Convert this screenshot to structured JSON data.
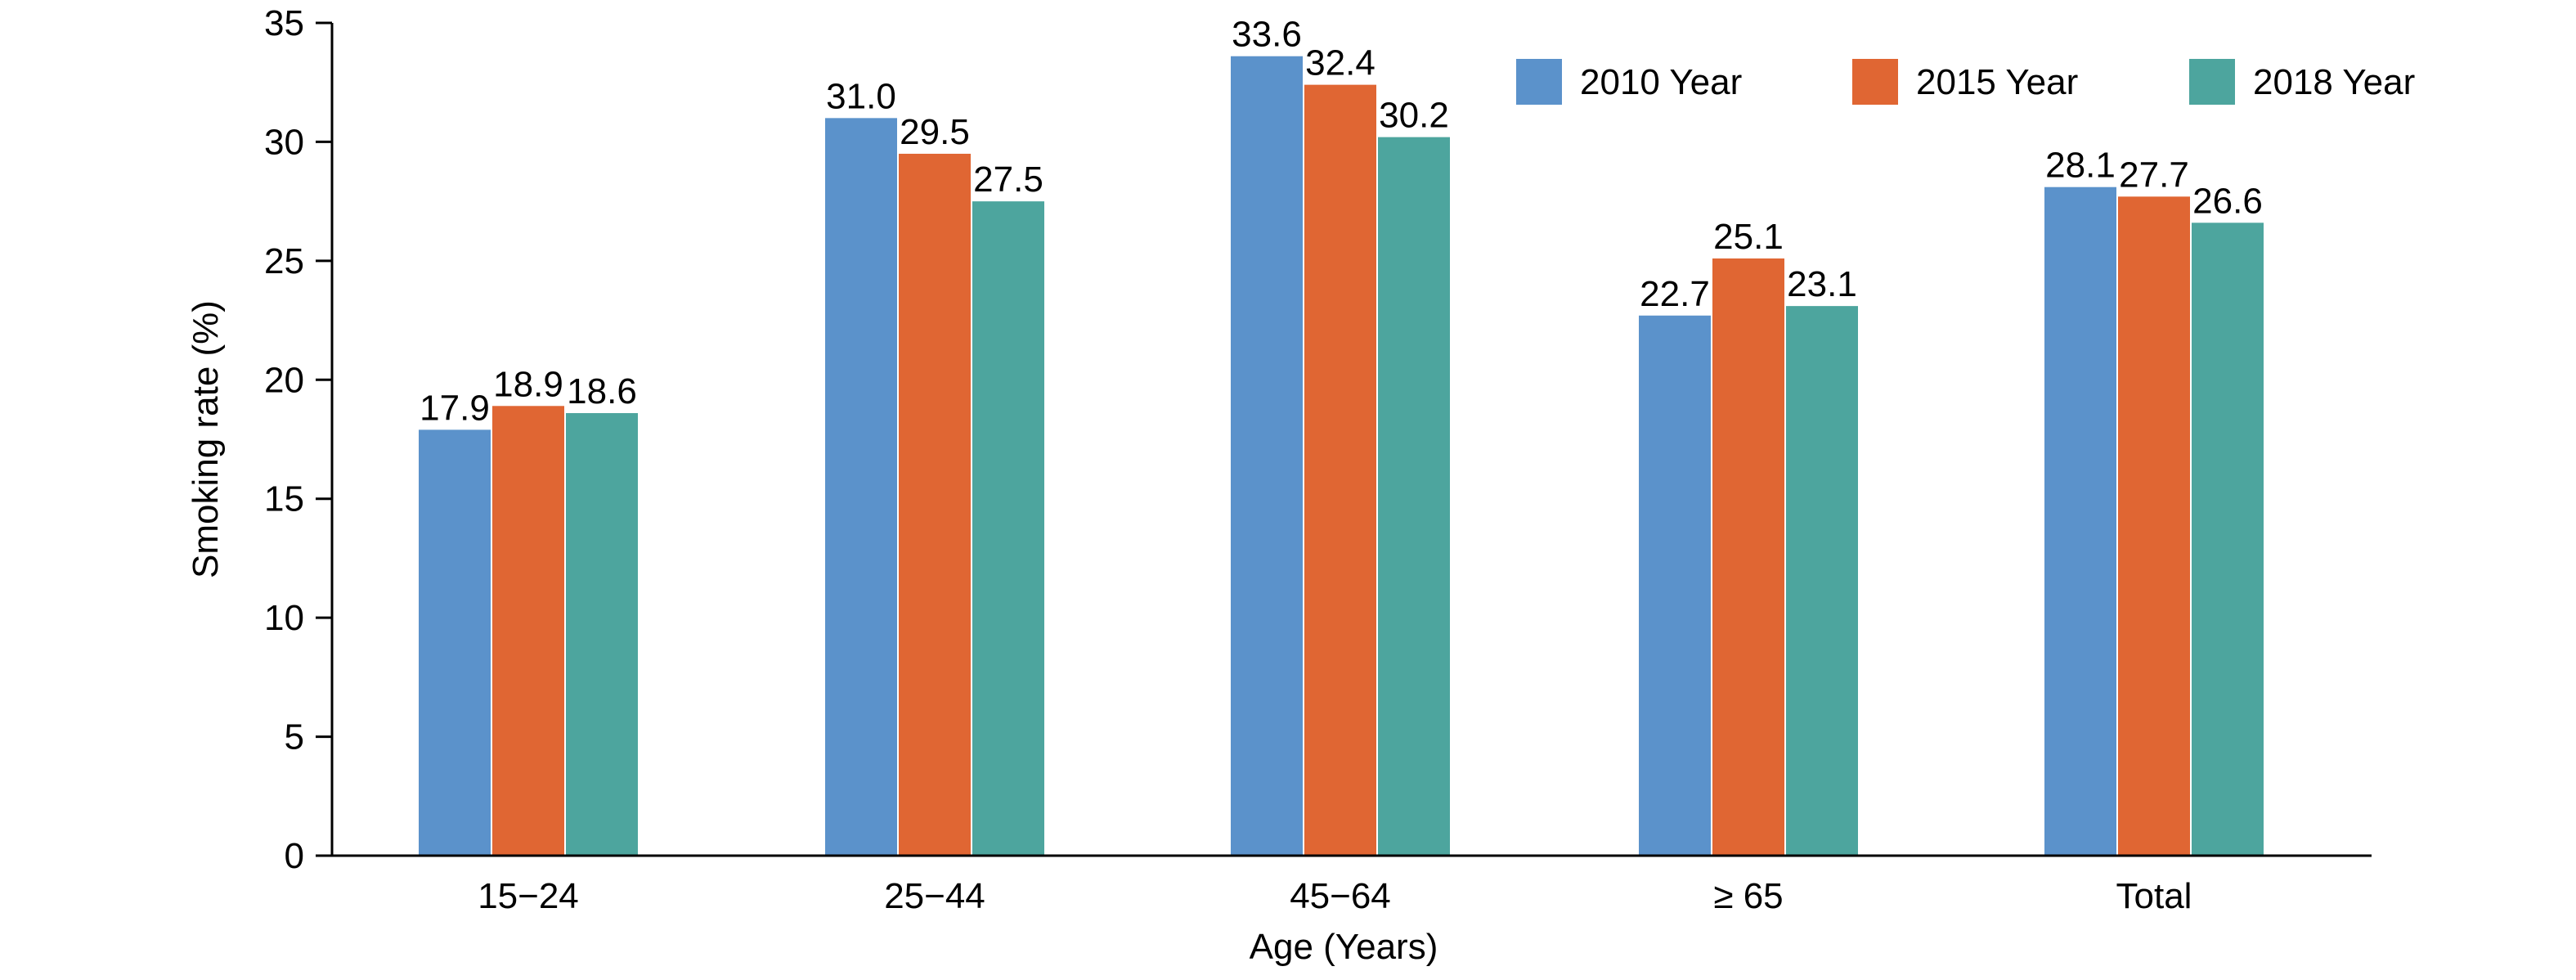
{
  "chart_data": {
    "type": "bar",
    "title": "",
    "xlabel": "Age (Years)",
    "ylabel": "Smoking rate (%)",
    "ylim": [
      0,
      35
    ],
    "yticks": [
      "0",
      "5",
      "10",
      "15",
      "20",
      "25",
      "30",
      "35"
    ],
    "categories": [
      "15−24",
      "25−44",
      "45−64",
      "≥ 65",
      "Total"
    ],
    "series": [
      {
        "name": "2010 Year",
        "color": "#5B92CB",
        "values": [
          17.9,
          31.0,
          33.6,
          22.7,
          28.1
        ],
        "labels": [
          "17.9",
          "31.0",
          "33.6",
          "22.7",
          "28.1"
        ]
      },
      {
        "name": "2015 Year",
        "color": "#E06633",
        "values": [
          18.9,
          29.5,
          32.4,
          25.1,
          27.7
        ],
        "labels": [
          "18.9",
          "29.5",
          "32.4",
          "25.1",
          "27.7"
        ]
      },
      {
        "name": "2018 Year",
        "color": "#4DA59E",
        "values": [
          18.6,
          27.5,
          30.2,
          23.1,
          26.6
        ],
        "labels": [
          "18.6",
          "27.5",
          "30.2",
          "23.1",
          "26.6"
        ]
      }
    ],
    "legend_position": "top-right",
    "grid": false
  }
}
